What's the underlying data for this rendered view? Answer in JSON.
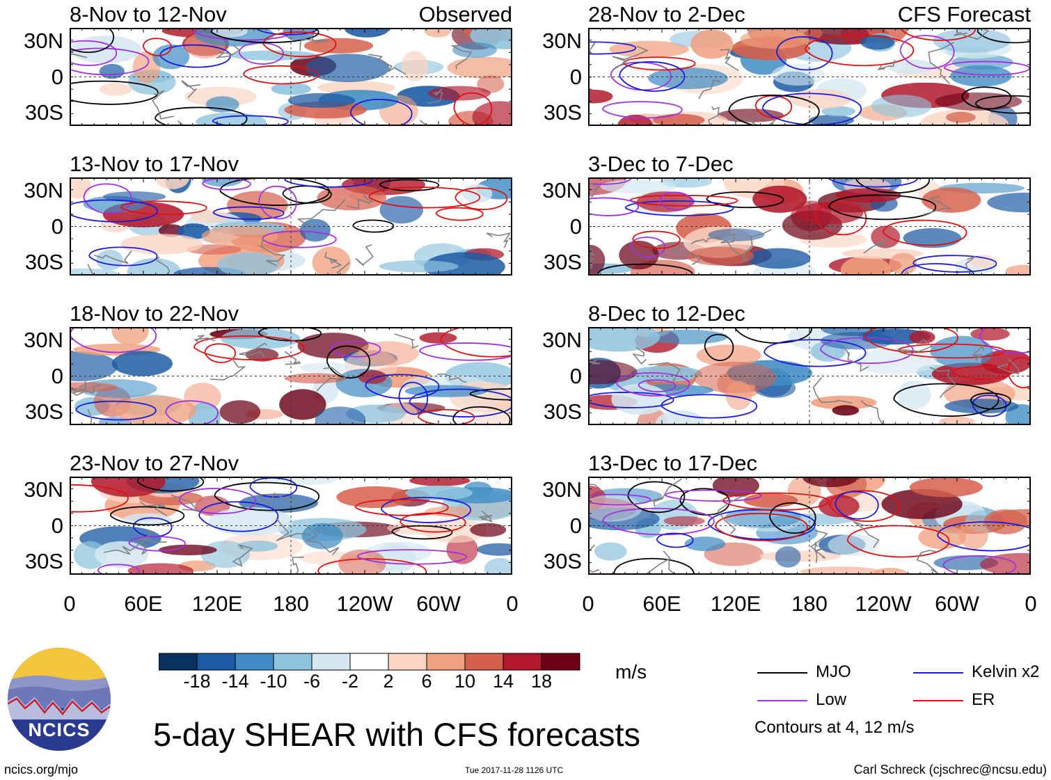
{
  "chart_data": {
    "type": "heatmap",
    "title": "5-day SHEAR with CFS forecasts",
    "units": "m/s",
    "x_ticks": [
      "0",
      "60E",
      "120E",
      "180",
      "120W",
      "60W",
      "0"
    ],
    "y_ticks": [
      "30N",
      "0",
      "30S"
    ],
    "panel_groups": [
      {
        "label": "Observed",
        "column": "left"
      },
      {
        "label": "CFS Forecast",
        "column": "right"
      }
    ],
    "panels": [
      {
        "period": "8-Nov to 12-Nov",
        "column": "left",
        "row": 0
      },
      {
        "period": "13-Nov to 17-Nov",
        "column": "left",
        "row": 1
      },
      {
        "period": "18-Nov to 22-Nov",
        "column": "left",
        "row": 2
      },
      {
        "period": "23-Nov to 27-Nov",
        "column": "left",
        "row": 3
      },
      {
        "period": "28-Nov to 2-Dec",
        "column": "right",
        "row": 0
      },
      {
        "period": "3-Dec to 7-Dec",
        "column": "right",
        "row": 1
      },
      {
        "period": "8-Dec to 12-Dec",
        "column": "right",
        "row": 2
      },
      {
        "period": "13-Dec to 17-Dec",
        "column": "right",
        "row": 3
      }
    ],
    "colorbar": {
      "labels": [
        "-18",
        "-14",
        "-10",
        "-6",
        "-2",
        "2",
        "6",
        "10",
        "14",
        "18"
      ],
      "colors": [
        "#0a3060",
        "#1c5aa4",
        "#3f8cc4",
        "#8ec3de",
        "#d4e7f1",
        "#ffffff",
        "#fad5c3",
        "#f0a07f",
        "#d6604d",
        "#b2182b",
        "#6b0016"
      ]
    },
    "legend": [
      {
        "label": "MJO",
        "color": "#000000"
      },
      {
        "label": "Kelvin x2",
        "color": "#1a1adc"
      },
      {
        "label": "Low",
        "color": "#a030e0"
      },
      {
        "label": "ER",
        "color": "#e01010"
      }
    ],
    "contour_note": "Contours at 4, 12 m/s"
  },
  "footer": {
    "logo_text": "NCICS",
    "url": "ncics.org/mjo",
    "timestamp": "Tue 2017-11-28 1126 UTC",
    "credit": "Carl Schreck (cjschrec@ncsu.edu)"
  }
}
